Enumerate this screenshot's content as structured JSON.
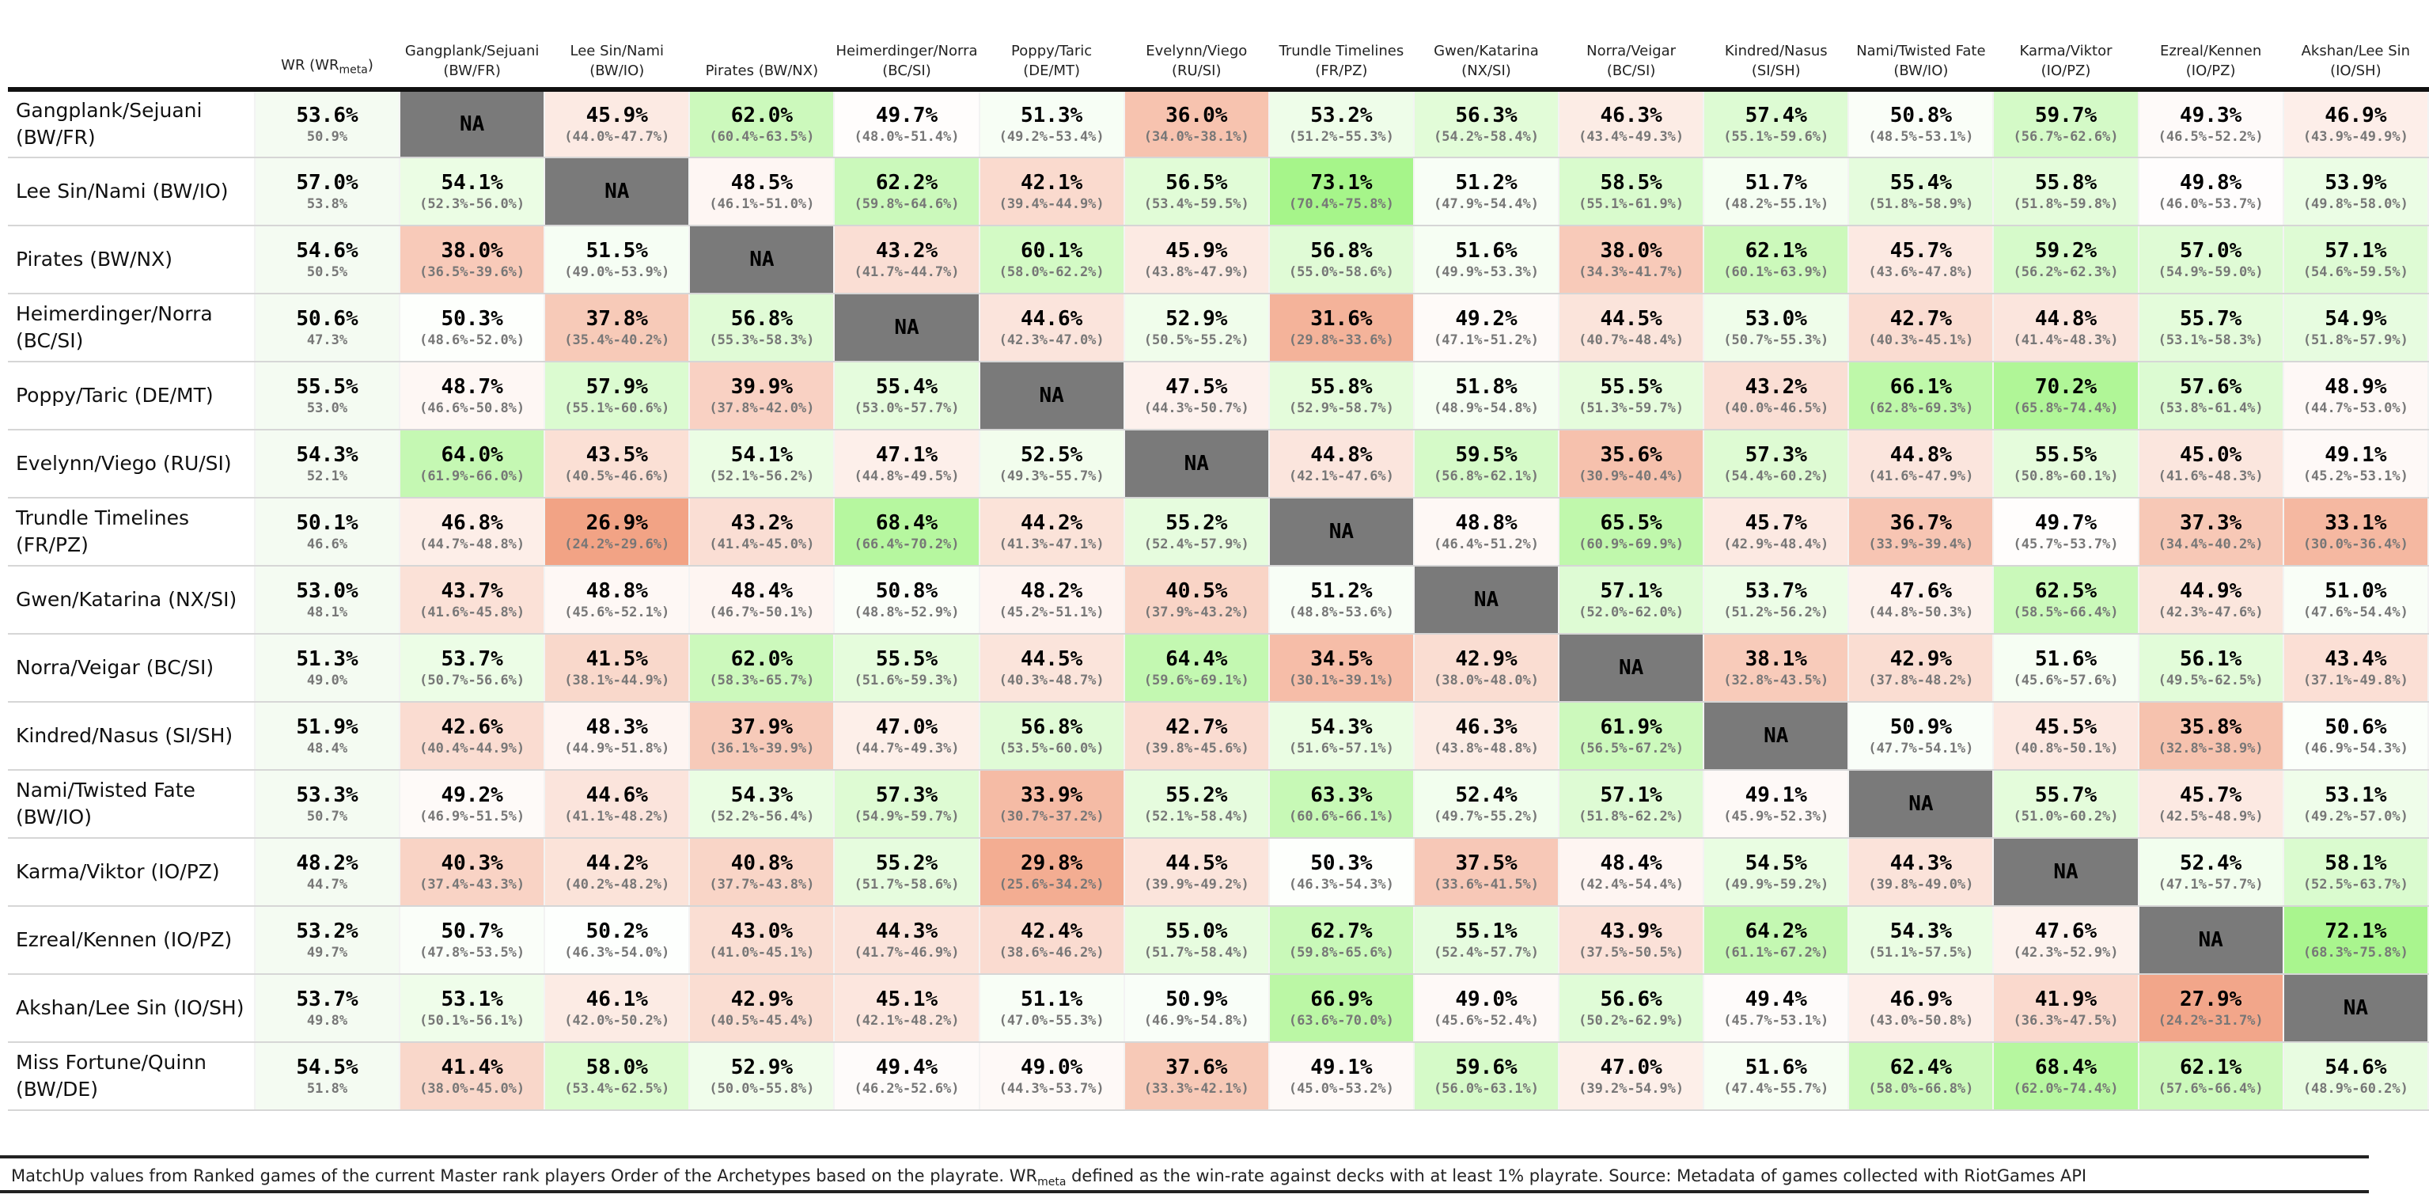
{
  "chart_data": {
    "type": "table",
    "wr_header": "WR (WR",
    "wr_header_sub": "meta",
    "columns": [
      "Gangplank/Sejuani (BW/FR)",
      "Lee Sin/Nami (BW/IO)",
      "Pirates (BW/NX)",
      "Heimerdinger/Norra (BC/SI)",
      "Poppy/Taric (DE/MT)",
      "Evelynn/Viego (RU/SI)",
      "Trundle Timelines (FR/PZ)",
      "Gwen/Katarina (NX/SI)",
      "Norra/Veigar (BC/SI)",
      "Kindred/Nasus (SI/SH)",
      "Nami/Twisted Fate (BW/IO)",
      "Karma/Viktor (IO/PZ)",
      "Ezreal/Kennen (IO/PZ)",
      "Akshan/Lee Sin (IO/SH)"
    ],
    "rows": [
      {
        "name": "Gangplank/Sejuani (BW/FR)",
        "wr": "53.6%",
        "wr_meta": "50.9%",
        "cells": [
          null,
          [
            "45.9%",
            "(44.0%-47.7%)"
          ],
          [
            "62.0%",
            "(60.4%-63.5%)"
          ],
          [
            "49.7%",
            "(48.0%-51.4%)"
          ],
          [
            "51.3%",
            "(49.2%-53.4%)"
          ],
          [
            "36.0%",
            "(34.0%-38.1%)"
          ],
          [
            "53.2%",
            "(51.2%-55.3%)"
          ],
          [
            "56.3%",
            "(54.2%-58.4%)"
          ],
          [
            "46.3%",
            "(43.4%-49.3%)"
          ],
          [
            "57.4%",
            "(55.1%-59.6%)"
          ],
          [
            "50.8%",
            "(48.5%-53.1%)"
          ],
          [
            "59.7%",
            "(56.7%-62.6%)"
          ],
          [
            "49.3%",
            "(46.5%-52.2%)"
          ],
          [
            "46.9%",
            "(43.9%-49.9%)"
          ]
        ]
      },
      {
        "name": "Lee Sin/Nami (BW/IO)",
        "wr": "57.0%",
        "wr_meta": "53.8%",
        "cells": [
          [
            "54.1%",
            "(52.3%-56.0%)"
          ],
          null,
          [
            "48.5%",
            "(46.1%-51.0%)"
          ],
          [
            "62.2%",
            "(59.8%-64.6%)"
          ],
          [
            "42.1%",
            "(39.4%-44.9%)"
          ],
          [
            "56.5%",
            "(53.4%-59.5%)"
          ],
          [
            "73.1%",
            "(70.4%-75.8%)"
          ],
          [
            "51.2%",
            "(47.9%-54.4%)"
          ],
          [
            "58.5%",
            "(55.1%-61.9%)"
          ],
          [
            "51.7%",
            "(48.2%-55.1%)"
          ],
          [
            "55.4%",
            "(51.8%-58.9%)"
          ],
          [
            "55.8%",
            "(51.8%-59.8%)"
          ],
          [
            "49.8%",
            "(46.0%-53.7%)"
          ],
          [
            "53.9%",
            "(49.8%-58.0%)"
          ]
        ]
      },
      {
        "name": "Pirates (BW/NX)",
        "wr": "54.6%",
        "wr_meta": "50.5%",
        "cells": [
          [
            "38.0%",
            "(36.5%-39.6%)"
          ],
          [
            "51.5%",
            "(49.0%-53.9%)"
          ],
          null,
          [
            "43.2%",
            "(41.7%-44.7%)"
          ],
          [
            "60.1%",
            "(58.0%-62.2%)"
          ],
          [
            "45.9%",
            "(43.8%-47.9%)"
          ],
          [
            "56.8%",
            "(55.0%-58.6%)"
          ],
          [
            "51.6%",
            "(49.9%-53.3%)"
          ],
          [
            "38.0%",
            "(34.3%-41.7%)"
          ],
          [
            "62.1%",
            "(60.1%-63.9%)"
          ],
          [
            "45.7%",
            "(43.6%-47.8%)"
          ],
          [
            "59.2%",
            "(56.2%-62.3%)"
          ],
          [
            "57.0%",
            "(54.9%-59.0%)"
          ],
          [
            "57.1%",
            "(54.6%-59.5%)"
          ]
        ]
      },
      {
        "name": "Heimerdinger/Norra (BC/SI)",
        "wr": "50.6%",
        "wr_meta": "47.3%",
        "cells": [
          [
            "50.3%",
            "(48.6%-52.0%)"
          ],
          [
            "37.8%",
            "(35.4%-40.2%)"
          ],
          [
            "56.8%",
            "(55.3%-58.3%)"
          ],
          null,
          [
            "44.6%",
            "(42.3%-47.0%)"
          ],
          [
            "52.9%",
            "(50.5%-55.2%)"
          ],
          [
            "31.6%",
            "(29.8%-33.6%)"
          ],
          [
            "49.2%",
            "(47.1%-51.2%)"
          ],
          [
            "44.5%",
            "(40.7%-48.4%)"
          ],
          [
            "53.0%",
            "(50.7%-55.3%)"
          ],
          [
            "42.7%",
            "(40.3%-45.1%)"
          ],
          [
            "44.8%",
            "(41.4%-48.3%)"
          ],
          [
            "55.7%",
            "(53.1%-58.3%)"
          ],
          [
            "54.9%",
            "(51.8%-57.9%)"
          ]
        ]
      },
      {
        "name": "Poppy/Taric (DE/MT)",
        "wr": "55.5%",
        "wr_meta": "53.0%",
        "cells": [
          [
            "48.7%",
            "(46.6%-50.8%)"
          ],
          [
            "57.9%",
            "(55.1%-60.6%)"
          ],
          [
            "39.9%",
            "(37.8%-42.0%)"
          ],
          [
            "55.4%",
            "(53.0%-57.7%)"
          ],
          null,
          [
            "47.5%",
            "(44.3%-50.7%)"
          ],
          [
            "55.8%",
            "(52.9%-58.7%)"
          ],
          [
            "51.8%",
            "(48.9%-54.8%)"
          ],
          [
            "55.5%",
            "(51.3%-59.7%)"
          ],
          [
            "43.2%",
            "(40.0%-46.5%)"
          ],
          [
            "66.1%",
            "(62.8%-69.3%)"
          ],
          [
            "70.2%",
            "(65.8%-74.4%)"
          ],
          [
            "57.6%",
            "(53.8%-61.4%)"
          ],
          [
            "48.9%",
            "(44.7%-53.0%)"
          ]
        ]
      },
      {
        "name": "Evelynn/Viego (RU/SI)",
        "wr": "54.3%",
        "wr_meta": "52.1%",
        "cells": [
          [
            "64.0%",
            "(61.9%-66.0%)"
          ],
          [
            "43.5%",
            "(40.5%-46.6%)"
          ],
          [
            "54.1%",
            "(52.1%-56.2%)"
          ],
          [
            "47.1%",
            "(44.8%-49.5%)"
          ],
          [
            "52.5%",
            "(49.3%-55.7%)"
          ],
          null,
          [
            "44.8%",
            "(42.1%-47.6%)"
          ],
          [
            "59.5%",
            "(56.8%-62.1%)"
          ],
          [
            "35.6%",
            "(30.9%-40.4%)"
          ],
          [
            "57.3%",
            "(54.4%-60.2%)"
          ],
          [
            "44.8%",
            "(41.6%-47.9%)"
          ],
          [
            "55.5%",
            "(50.8%-60.1%)"
          ],
          [
            "45.0%",
            "(41.6%-48.3%)"
          ],
          [
            "49.1%",
            "(45.2%-53.1%)"
          ]
        ]
      },
      {
        "name": "Trundle Timelines (FR/PZ)",
        "wr": "50.1%",
        "wr_meta": "46.6%",
        "cells": [
          [
            "46.8%",
            "(44.7%-48.8%)"
          ],
          [
            "26.9%",
            "(24.2%-29.6%)"
          ],
          [
            "43.2%",
            "(41.4%-45.0%)"
          ],
          [
            "68.4%",
            "(66.4%-70.2%)"
          ],
          [
            "44.2%",
            "(41.3%-47.1%)"
          ],
          [
            "55.2%",
            "(52.4%-57.9%)"
          ],
          null,
          [
            "48.8%",
            "(46.4%-51.2%)"
          ],
          [
            "65.5%",
            "(60.9%-69.9%)"
          ],
          [
            "45.7%",
            "(42.9%-48.4%)"
          ],
          [
            "36.7%",
            "(33.9%-39.4%)"
          ],
          [
            "49.7%",
            "(45.7%-53.7%)"
          ],
          [
            "37.3%",
            "(34.4%-40.2%)"
          ],
          [
            "33.1%",
            "(30.0%-36.4%)"
          ]
        ]
      },
      {
        "name": "Gwen/Katarina (NX/SI)",
        "wr": "53.0%",
        "wr_meta": "48.1%",
        "cells": [
          [
            "43.7%",
            "(41.6%-45.8%)"
          ],
          [
            "48.8%",
            "(45.6%-52.1%)"
          ],
          [
            "48.4%",
            "(46.7%-50.1%)"
          ],
          [
            "50.8%",
            "(48.8%-52.9%)"
          ],
          [
            "48.2%",
            "(45.2%-51.1%)"
          ],
          [
            "40.5%",
            "(37.9%-43.2%)"
          ],
          [
            "51.2%",
            "(48.8%-53.6%)"
          ],
          null,
          [
            "57.1%",
            "(52.0%-62.0%)"
          ],
          [
            "53.7%",
            "(51.2%-56.2%)"
          ],
          [
            "47.6%",
            "(44.8%-50.3%)"
          ],
          [
            "62.5%",
            "(58.5%-66.4%)"
          ],
          [
            "44.9%",
            "(42.3%-47.6%)"
          ],
          [
            "51.0%",
            "(47.6%-54.4%)"
          ]
        ]
      },
      {
        "name": "Norra/Veigar (BC/SI)",
        "wr": "51.3%",
        "wr_meta": "49.0%",
        "cells": [
          [
            "53.7%",
            "(50.7%-56.6%)"
          ],
          [
            "41.5%",
            "(38.1%-44.9%)"
          ],
          [
            "62.0%",
            "(58.3%-65.7%)"
          ],
          [
            "55.5%",
            "(51.6%-59.3%)"
          ],
          [
            "44.5%",
            "(40.3%-48.7%)"
          ],
          [
            "64.4%",
            "(59.6%-69.1%)"
          ],
          [
            "34.5%",
            "(30.1%-39.1%)"
          ],
          [
            "42.9%",
            "(38.0%-48.0%)"
          ],
          null,
          [
            "38.1%",
            "(32.8%-43.5%)"
          ],
          [
            "42.9%",
            "(37.8%-48.2%)"
          ],
          [
            "51.6%",
            "(45.6%-57.6%)"
          ],
          [
            "56.1%",
            "(49.5%-62.5%)"
          ],
          [
            "43.4%",
            "(37.1%-49.8%)"
          ]
        ]
      },
      {
        "name": "Kindred/Nasus (SI/SH)",
        "wr": "51.9%",
        "wr_meta": "48.4%",
        "cells": [
          [
            "42.6%",
            "(40.4%-44.9%)"
          ],
          [
            "48.3%",
            "(44.9%-51.8%)"
          ],
          [
            "37.9%",
            "(36.1%-39.9%)"
          ],
          [
            "47.0%",
            "(44.7%-49.3%)"
          ],
          [
            "56.8%",
            "(53.5%-60.0%)"
          ],
          [
            "42.7%",
            "(39.8%-45.6%)"
          ],
          [
            "54.3%",
            "(51.6%-57.1%)"
          ],
          [
            "46.3%",
            "(43.8%-48.8%)"
          ],
          [
            "61.9%",
            "(56.5%-67.2%)"
          ],
          null,
          [
            "50.9%",
            "(47.7%-54.1%)"
          ],
          [
            "45.5%",
            "(40.8%-50.1%)"
          ],
          [
            "35.8%",
            "(32.8%-38.9%)"
          ],
          [
            "50.6%",
            "(46.9%-54.3%)"
          ]
        ]
      },
      {
        "name": "Nami/Twisted Fate (BW/IO)",
        "wr": "53.3%",
        "wr_meta": "50.7%",
        "cells": [
          [
            "49.2%",
            "(46.9%-51.5%)"
          ],
          [
            "44.6%",
            "(41.1%-48.2%)"
          ],
          [
            "54.3%",
            "(52.2%-56.4%)"
          ],
          [
            "57.3%",
            "(54.9%-59.7%)"
          ],
          [
            "33.9%",
            "(30.7%-37.2%)"
          ],
          [
            "55.2%",
            "(52.1%-58.4%)"
          ],
          [
            "63.3%",
            "(60.6%-66.1%)"
          ],
          [
            "52.4%",
            "(49.7%-55.2%)"
          ],
          [
            "57.1%",
            "(51.8%-62.2%)"
          ],
          [
            "49.1%",
            "(45.9%-52.3%)"
          ],
          null,
          [
            "55.7%",
            "(51.0%-60.2%)"
          ],
          [
            "45.7%",
            "(42.5%-48.9%)"
          ],
          [
            "53.1%",
            "(49.2%-57.0%)"
          ]
        ]
      },
      {
        "name": "Karma/Viktor (IO/PZ)",
        "wr": "48.2%",
        "wr_meta": "44.7%",
        "cells": [
          [
            "40.3%",
            "(37.4%-43.3%)"
          ],
          [
            "44.2%",
            "(40.2%-48.2%)"
          ],
          [
            "40.8%",
            "(37.7%-43.8%)"
          ],
          [
            "55.2%",
            "(51.7%-58.6%)"
          ],
          [
            "29.8%",
            "(25.6%-34.2%)"
          ],
          [
            "44.5%",
            "(39.9%-49.2%)"
          ],
          [
            "50.3%",
            "(46.3%-54.3%)"
          ],
          [
            "37.5%",
            "(33.6%-41.5%)"
          ],
          [
            "48.4%",
            "(42.4%-54.4%)"
          ],
          [
            "54.5%",
            "(49.9%-59.2%)"
          ],
          [
            "44.3%",
            "(39.8%-49.0%)"
          ],
          null,
          [
            "52.4%",
            "(47.1%-57.7%)"
          ],
          [
            "58.1%",
            "(52.5%-63.7%)"
          ]
        ]
      },
      {
        "name": "Ezreal/Kennen (IO/PZ)",
        "wr": "53.2%",
        "wr_meta": "49.7%",
        "cells": [
          [
            "50.7%",
            "(47.8%-53.5%)"
          ],
          [
            "50.2%",
            "(46.3%-54.0%)"
          ],
          [
            "43.0%",
            "(41.0%-45.1%)"
          ],
          [
            "44.3%",
            "(41.7%-46.9%)"
          ],
          [
            "42.4%",
            "(38.6%-46.2%)"
          ],
          [
            "55.0%",
            "(51.7%-58.4%)"
          ],
          [
            "62.7%",
            "(59.8%-65.6%)"
          ],
          [
            "55.1%",
            "(52.4%-57.7%)"
          ],
          [
            "43.9%",
            "(37.5%-50.5%)"
          ],
          [
            "64.2%",
            "(61.1%-67.2%)"
          ],
          [
            "54.3%",
            "(51.1%-57.5%)"
          ],
          [
            "47.6%",
            "(42.3%-52.9%)"
          ],
          null,
          [
            "72.1%",
            "(68.3%-75.8%)"
          ]
        ]
      },
      {
        "name": "Akshan/Lee Sin (IO/SH)",
        "wr": "53.7%",
        "wr_meta": "49.8%",
        "cells": [
          [
            "53.1%",
            "(50.1%-56.1%)"
          ],
          [
            "46.1%",
            "(42.0%-50.2%)"
          ],
          [
            "42.9%",
            "(40.5%-45.4%)"
          ],
          [
            "45.1%",
            "(42.1%-48.2%)"
          ],
          [
            "51.1%",
            "(47.0%-55.3%)"
          ],
          [
            "50.9%",
            "(46.9%-54.8%)"
          ],
          [
            "66.9%",
            "(63.6%-70.0%)"
          ],
          [
            "49.0%",
            "(45.6%-52.4%)"
          ],
          [
            "56.6%",
            "(50.2%-62.9%)"
          ],
          [
            "49.4%",
            "(45.7%-53.1%)"
          ],
          [
            "46.9%",
            "(43.0%-50.8%)"
          ],
          [
            "41.9%",
            "(36.3%-47.5%)"
          ],
          [
            "27.9%",
            "(24.2%-31.7%)"
          ],
          null
        ]
      },
      {
        "name": "Miss Fortune/Quinn (BW/DE)",
        "wr": "54.5%",
        "wr_meta": "51.8%",
        "cells": [
          [
            "41.4%",
            "(38.0%-45.0%)"
          ],
          [
            "58.0%",
            "(53.4%-62.5%)"
          ],
          [
            "52.9%",
            "(50.0%-55.8%)"
          ],
          [
            "49.4%",
            "(46.2%-52.6%)"
          ],
          [
            "49.0%",
            "(44.3%-53.7%)"
          ],
          [
            "37.6%",
            "(33.3%-42.1%)"
          ],
          [
            "49.1%",
            "(45.0%-53.2%)"
          ],
          [
            "59.6%",
            "(56.0%-63.1%)"
          ],
          [
            "47.0%",
            "(39.2%-54.9%)"
          ],
          [
            "51.6%",
            "(47.4%-55.7%)"
          ],
          [
            "62.4%",
            "(58.0%-66.8%)"
          ],
          [
            "68.4%",
            "(62.0%-74.4%)"
          ],
          [
            "62.1%",
            "(57.6%-66.4%)"
          ],
          [
            "54.6%",
            "(48.9%-60.2%)"
          ]
        ]
      }
    ],
    "na_label": "NA",
    "na_color": "#7a7a7a",
    "wr_cell_color": "#f4fbf2",
    "color_scale": {
      "low": "#f2a385",
      "mid": "#ffffff",
      "high": "#a6f58a",
      "low_value": 26.9,
      "mid_value": 50.0,
      "high_value": 73.1
    }
  },
  "caption": {
    "part1": "MatchUp values from Ranked games of the current Master rank players Order of the Archetypes based on the playrate. WR",
    "sub": "meta",
    "part2": " defined as the win-rate against decks with at least 1% playrate. Source: Metadata of games collected with RiotGames API"
  }
}
